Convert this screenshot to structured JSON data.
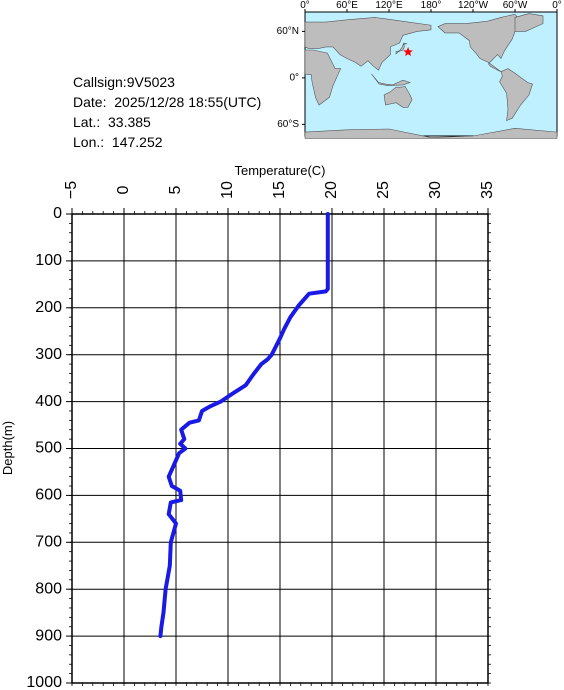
{
  "station": {
    "callsign": "Callsign:9V5023",
    "date": "Date:  2025/12/28 18:55(UTC)",
    "lat": "Lat.:  33.385",
    "lon": "Lon.:  147.252"
  },
  "map": {
    "lon_labels": [
      "0°",
      "60°E",
      "120°E",
      "180°",
      "120°W",
      "60°W",
      "0°"
    ],
    "lat_labels": [
      "60°N",
      "0°",
      "60°S"
    ],
    "ocean_color": "#bff0ff",
    "land_color": "#bdbdbd",
    "marker_color": "#ff0000",
    "marker": {
      "lat": 33.385,
      "lon": 147.252
    }
  },
  "chart_data": {
    "type": "line",
    "xlabel": "Temperature(C)",
    "ylabel": "Depth(m)",
    "xlim": [
      -5,
      35
    ],
    "ylim": [
      0,
      1000
    ],
    "y_inverted": true,
    "x_ticks": [
      -5,
      0,
      5,
      10,
      15,
      20,
      25,
      30,
      35
    ],
    "y_ticks": [
      0,
      100,
      200,
      300,
      400,
      500,
      600,
      700,
      800,
      900,
      1000
    ],
    "grid": true,
    "line_color": "#1a1ae6",
    "series": [
      {
        "x": [
          19.6,
          19.6,
          19.6,
          19.4,
          17.8,
          16.8,
          16.0,
          15.4,
          15.0,
          14.2,
          13.8,
          13.2,
          12.5,
          11.7,
          10.3,
          9.3,
          8.3,
          7.5,
          7.2,
          6.3,
          5.5,
          5.8,
          5.4,
          5.9,
          5.3,
          4.7,
          4.3,
          4.6,
          5.4,
          5.5,
          4.5,
          4.3,
          5.0,
          4.5,
          4.4,
          4.0,
          3.8,
          3.6,
          3.5
        ],
        "y": [
          0,
          100,
          160,
          165,
          170,
          195,
          220,
          245,
          265,
          300,
          310,
          320,
          340,
          365,
          385,
          400,
          410,
          420,
          440,
          445,
          460,
          480,
          490,
          500,
          510,
          540,
          560,
          580,
          590,
          610,
          615,
          640,
          660,
          700,
          750,
          800,
          850,
          880,
          900
        ]
      }
    ]
  }
}
